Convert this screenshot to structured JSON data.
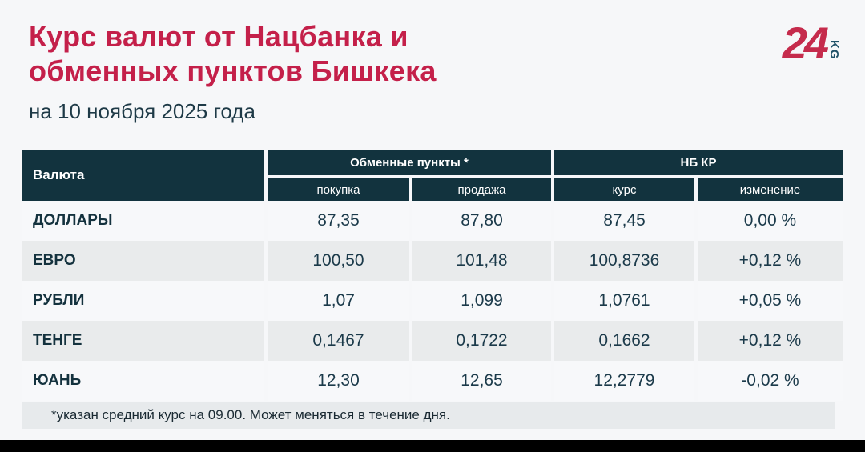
{
  "header": {
    "title_line1": "Курс валют от Нацбанка и",
    "title_line2": "обменных пунктов Бишкека",
    "subtitle": "на 10 ноября 2025 года"
  },
  "logo": {
    "number": "24",
    "suffix": "KG"
  },
  "chart_data": {
    "type": "table",
    "title": "Курс валют от Нацбанка и обменных пунктов Бишкека",
    "subtitle": "на 10 ноября 2025 года",
    "columns": [
      "Валюта",
      "покупка",
      "продажа",
      "курс",
      "изменение"
    ],
    "column_groups": [
      {
        "label": "Обменные пункты *",
        "spans": [
          "покупка",
          "продажа"
        ]
      },
      {
        "label": "НБ КР",
        "spans": [
          "курс",
          "изменение"
        ]
      }
    ],
    "rows": [
      {
        "currency": "ДОЛЛАРЫ",
        "buy": "87,35",
        "sell": "87,80",
        "rate": "87,45",
        "change": "0,00 %"
      },
      {
        "currency": "ЕВРО",
        "buy": "100,50",
        "sell": "101,48",
        "rate": "100,8736",
        "change": "+0,12 %"
      },
      {
        "currency": "РУБЛИ",
        "buy": "1,07",
        "sell": "1,099",
        "rate": "1,0761",
        "change": "+0,05 %"
      },
      {
        "currency": "ТЕНГЕ",
        "buy": "0,1467",
        "sell": "0,1722",
        "rate": "0,1662",
        "change": "+0,12 %"
      },
      {
        "currency": "ЮАНЬ",
        "buy": "12,30",
        "sell": "12,65",
        "rate": "12,2779",
        "change": "-0,02 %"
      }
    ],
    "footnote": "*указан средний курс на 09.00. Может меняться в течение дня."
  },
  "colors": {
    "accent_red": "#c4204a",
    "table_header_bg": "#12333e",
    "row_alt_bg": "#e9ebec",
    "footnote_bg": "#e7eaec",
    "page_bg": "#f6f7f9",
    "bottom_bar": "#000000",
    "logo_kg": "#1f5168"
  }
}
